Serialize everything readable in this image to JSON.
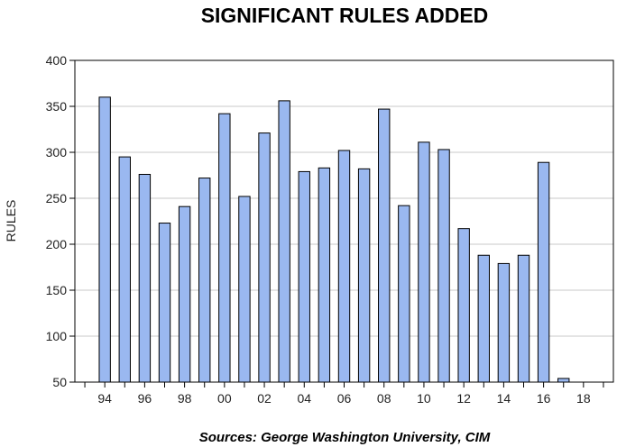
{
  "chart_data": {
    "type": "bar",
    "title": "SIGNIFICANT RULES ADDED",
    "ylabel": "RULES",
    "xlabel": "",
    "source": "Sources:  George Washington University, CIM",
    "ylim": [
      50,
      400
    ],
    "yticks": [
      50,
      100,
      150,
      200,
      250,
      300,
      350,
      400
    ],
    "grid": true,
    "bar_color": "#9ab8f0",
    "bar_edge_color": "#000000",
    "categories": [
      1993,
      1994,
      1995,
      1996,
      1997,
      1998,
      1999,
      2000,
      2001,
      2002,
      2003,
      2004,
      2005,
      2006,
      2007,
      2008,
      2009,
      2010,
      2011,
      2012,
      2013,
      2014,
      2015,
      2016,
      2017,
      2018,
      2019
    ],
    "values": [
      null,
      360,
      295,
      276,
      223,
      241,
      272,
      342,
      252,
      321,
      356,
      279,
      283,
      302,
      282,
      347,
      242,
      311,
      303,
      217,
      188,
      179,
      188,
      289,
      54,
      null,
      null
    ],
    "xtick_labels": [
      {
        "year": 1994,
        "label": "94"
      },
      {
        "year": 1996,
        "label": "96"
      },
      {
        "year": 1998,
        "label": "98"
      },
      {
        "year": 2000,
        "label": "00"
      },
      {
        "year": 2002,
        "label": "02"
      },
      {
        "year": 2004,
        "label": "04"
      },
      {
        "year": 2006,
        "label": "06"
      },
      {
        "year": 2008,
        "label": "08"
      },
      {
        "year": 2010,
        "label": "10"
      },
      {
        "year": 2012,
        "label": "12"
      },
      {
        "year": 2014,
        "label": "14"
      },
      {
        "year": 2016,
        "label": "16"
      },
      {
        "year": 2018,
        "label": "18"
      }
    ]
  }
}
